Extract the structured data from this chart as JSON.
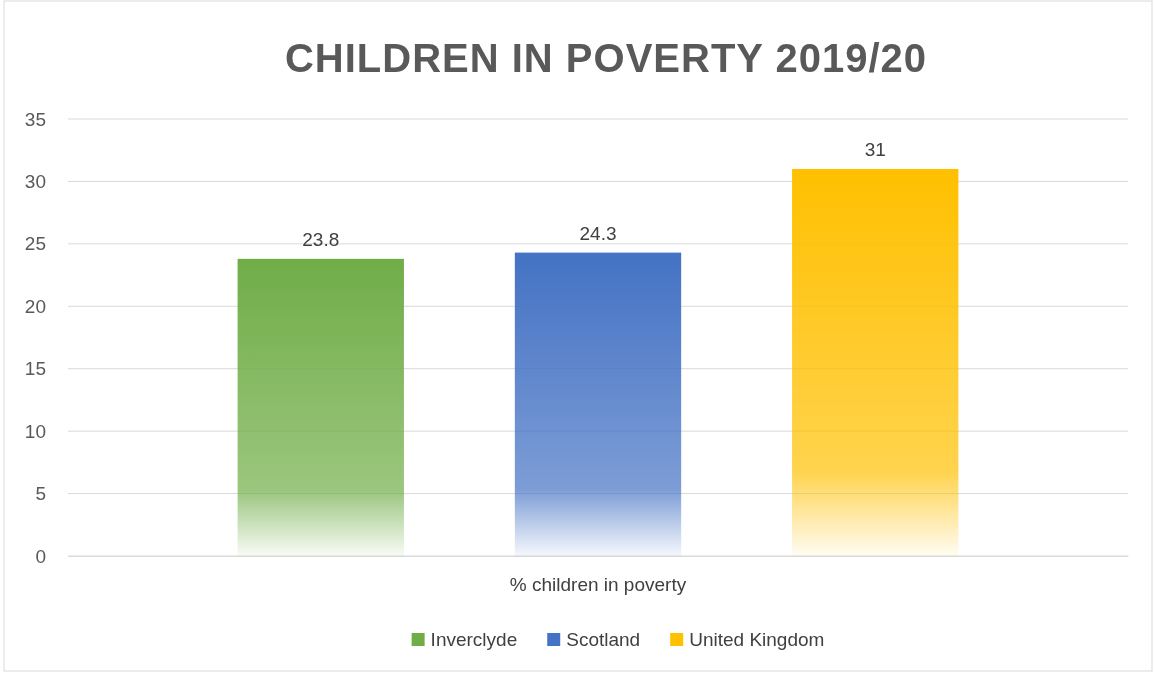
{
  "chart_data": {
    "type": "bar",
    "title": "CHILDREN IN POVERTY 2019/20",
    "categories": [
      "% children in poverty"
    ],
    "series": [
      {
        "name": "Inverclyde",
        "color": "#70ad47",
        "values": [
          23.8
        ]
      },
      {
        "name": "Scotland",
        "color": "#4472c4",
        "values": [
          24.3
        ]
      },
      {
        "name": "United Kingdom",
        "color": "#ffc000",
        "values": [
          31
        ]
      }
    ],
    "ylim": [
      0,
      35
    ],
    "yticks": [
      0,
      5,
      10,
      15,
      20,
      25,
      30,
      35
    ],
    "grid": "y",
    "legend": "bottom",
    "data_labels": true
  }
}
